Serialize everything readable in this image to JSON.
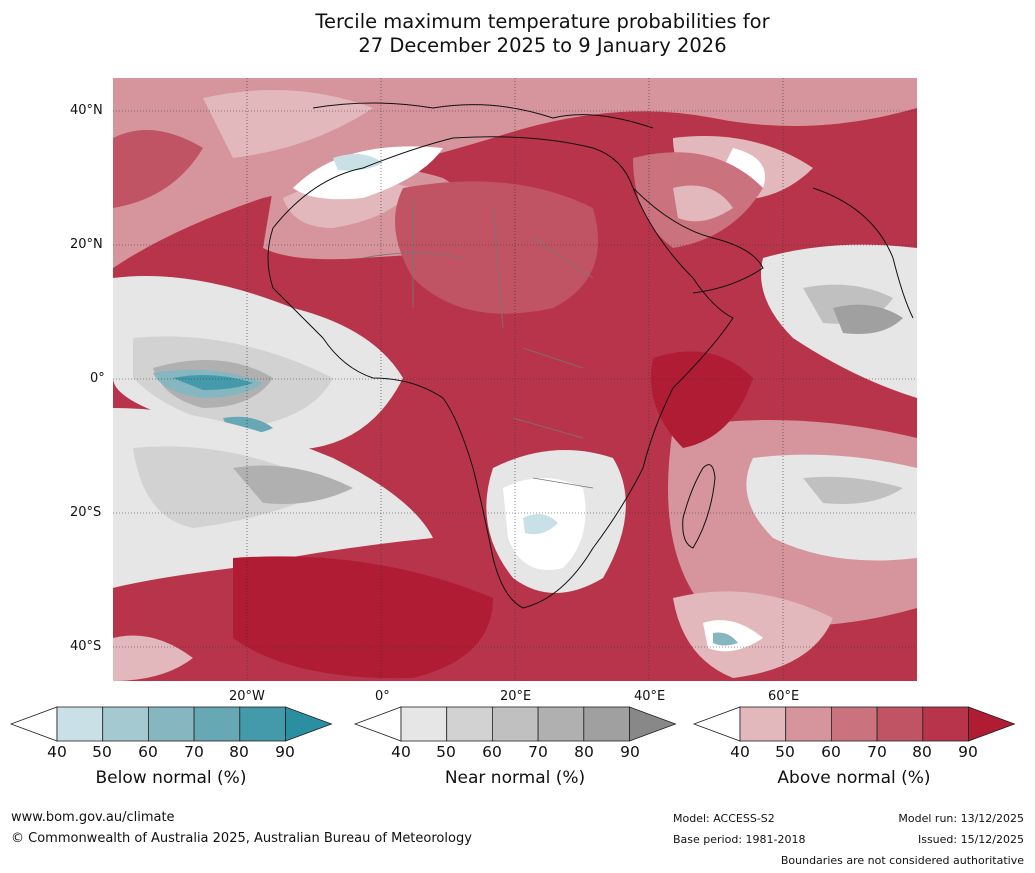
{
  "title_line1": "Tercile maximum temperature probabilities for",
  "title_line2": "27 December 2025 to 9 January 2026",
  "latitude_labels": [
    "40°N",
    "20°N",
    "0°",
    "20°S",
    "40°S"
  ],
  "longitude_labels": [
    "20°W",
    "0°",
    "20°E",
    "40°E",
    "60°E"
  ],
  "legends": [
    {
      "label": "Below normal (%)",
      "ticks": [
        "40",
        "50",
        "60",
        "70",
        "80",
        "90"
      ],
      "colors": [
        "#ffffff",
        "#c9e1e6",
        "#a5c9d0",
        "#86b6c0",
        "#66a8b4",
        "#4499aa",
        "#2b8fa2"
      ]
    },
    {
      "label": "Near normal (%)",
      "ticks": [
        "40",
        "50",
        "60",
        "70",
        "80",
        "90"
      ],
      "colors": [
        "#ffffff",
        "#e6e6e6",
        "#d2d2d2",
        "#c0c0c0",
        "#b0b0b0",
        "#a0a0a0",
        "#888888"
      ]
    },
    {
      "label": "Above normal (%)",
      "ticks": [
        "40",
        "50",
        "60",
        "70",
        "80",
        "90"
      ],
      "colors": [
        "#ffffff",
        "#e2b8bd",
        "#d6949c",
        "#ca727e",
        "#c05364",
        "#b8344a",
        "#b01c34"
      ]
    }
  ],
  "footer": {
    "website": "www.bom.gov.au/climate",
    "copyright": "© Commonwealth of Australia 2025, Australian Bureau of Meteorology",
    "model": "Model: ACCESS-S2",
    "base_period": "Base period: 1981-2018",
    "model_run": "Model run: 13/12/2025",
    "issued": "Issued: 15/12/2025",
    "disclaimer": "Boundaries are not considered authoritative"
  }
}
